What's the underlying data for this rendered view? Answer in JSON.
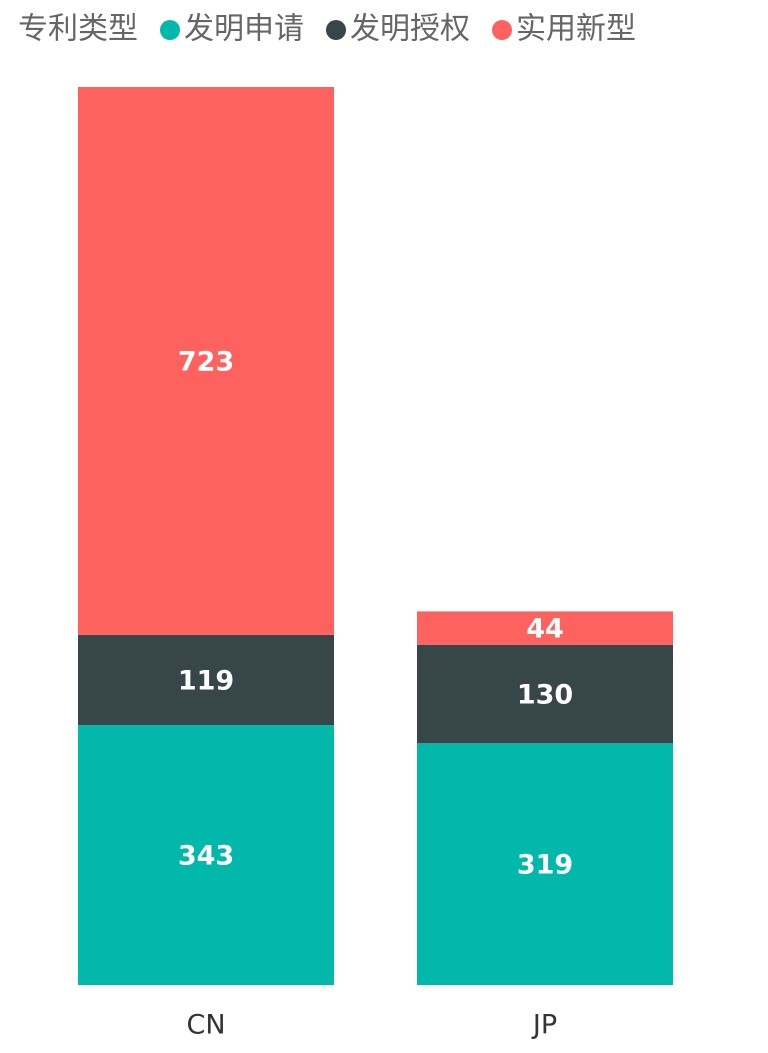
{
  "chart_data": {
    "type": "stacked_bar",
    "legend_title": "专利类型",
    "categories": [
      "CN",
      "JP"
    ],
    "series": [
      {
        "name": "发明申请",
        "color": "#01B8AA",
        "values": [
          343,
          319
        ]
      },
      {
        "name": "发明授权",
        "color": "#374649",
        "values": [
          119,
          130
        ]
      },
      {
        "name": "实用新型",
        "color": "#FD625E",
        "values": [
          723,
          44
        ]
      }
    ],
    "legend_position": "top-left",
    "data_labels": true
  }
}
